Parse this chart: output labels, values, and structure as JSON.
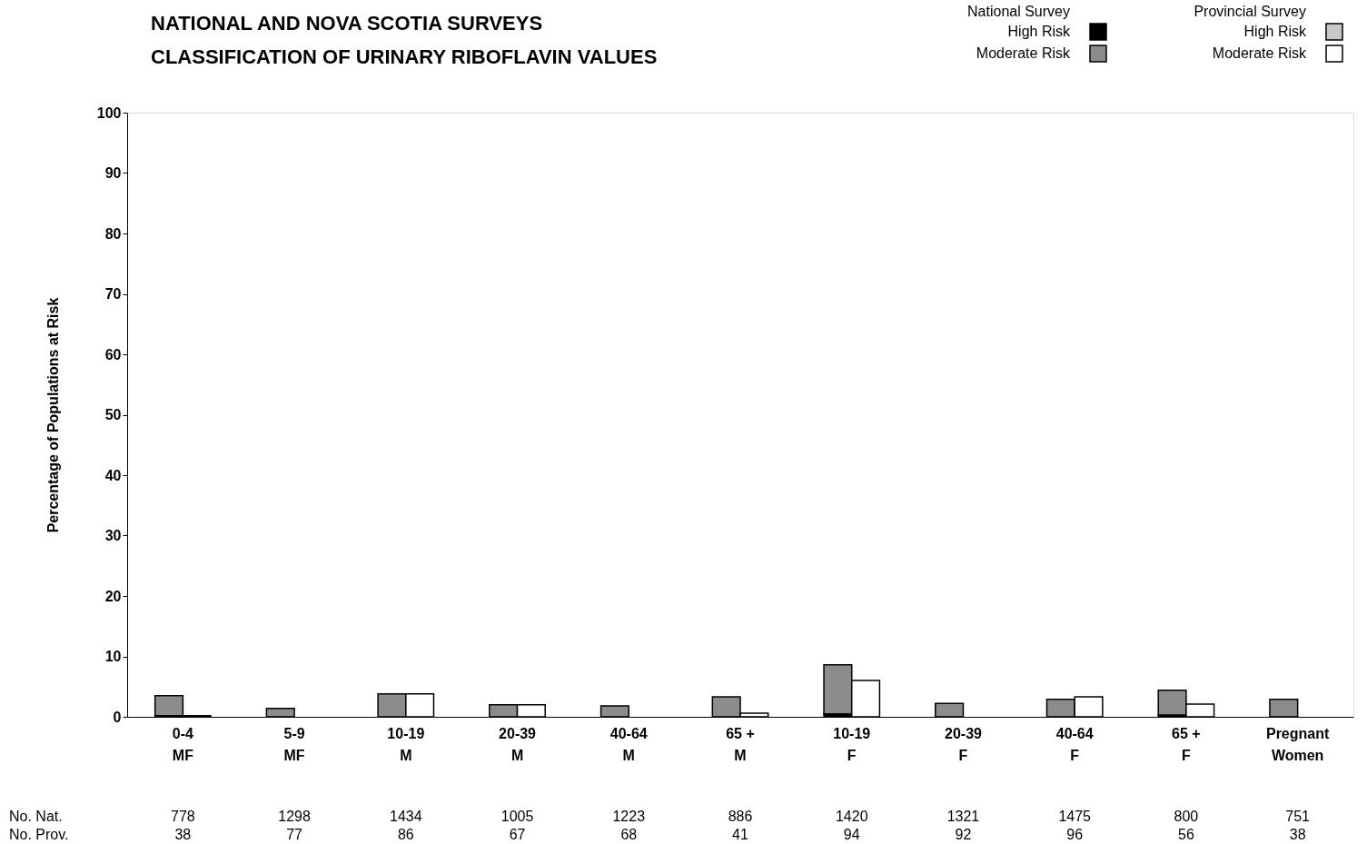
{
  "chart_data": {
    "type": "bar",
    "title": "NATIONAL AND NOVA SCOTIA SURVEYS",
    "subtitle": "CLASSIFICATION OF URINARY RIBOFLAVIN VALUES",
    "ylabel": "Percentage of Populations at Risk",
    "categories": [
      "0-4\nMF",
      "5-9\nMF",
      "10-19\nM",
      "20-39\nM",
      "40-64\nM",
      "65 +\nM",
      "10-19\nF",
      "20-39\nF",
      "40-64\nF",
      "65 +\nF",
      "Pregnant\nWomen"
    ],
    "legend_title": [
      "National Survey",
      "Provincial Survey"
    ],
    "legend": "top right",
    "series": [
      {
        "name": "High Risk",
        "color": "#000000",
        "values": [
          0.2,
          0,
          0,
          0,
          0,
          0,
          0.5,
          0,
          0,
          0.3,
          0
        ]
      },
      {
        "name": "Moderate Risk",
        "color": "#8c8c8c",
        "base": [
          0.2,
          0,
          0,
          0,
          0,
          0,
          0.5,
          0,
          0,
          0.3,
          0
        ],
        "values": [
          3.3,
          1.4,
          3.8,
          2.0,
          1.8,
          3.3,
          8.1,
          2.2,
          2.9,
          4.1,
          2.9
        ]
      },
      {
        "name": "High Risk",
        "color": "#c8c8c8",
        "values": [
          0,
          0,
          0,
          0,
          0,
          0,
          0,
          0,
          0,
          0,
          0
        ]
      },
      {
        "name": "Moderate Risk",
        "color": "#ffffff",
        "values": [
          0.2,
          0,
          3.8,
          2.0,
          0,
          0.6,
          6.0,
          0,
          3.3,
          2.1,
          0
        ]
      }
    ],
    "ylim": [
      0,
      100
    ],
    "yticks": [
      0,
      10,
      20,
      30,
      40,
      50,
      60,
      70,
      80,
      90,
      100
    ],
    "grid": false,
    "annotations": [
      "No. Nat.",
      "778",
      "1298",
      "1434",
      "1005",
      "1223",
      "886",
      "1420",
      "1321",
      "1475",
      "800",
      "751",
      "No. Prov.",
      "38",
      "77",
      "86",
      "67",
      "68",
      "41",
      "94",
      "92",
      "96",
      "56",
      "38"
    ]
  }
}
